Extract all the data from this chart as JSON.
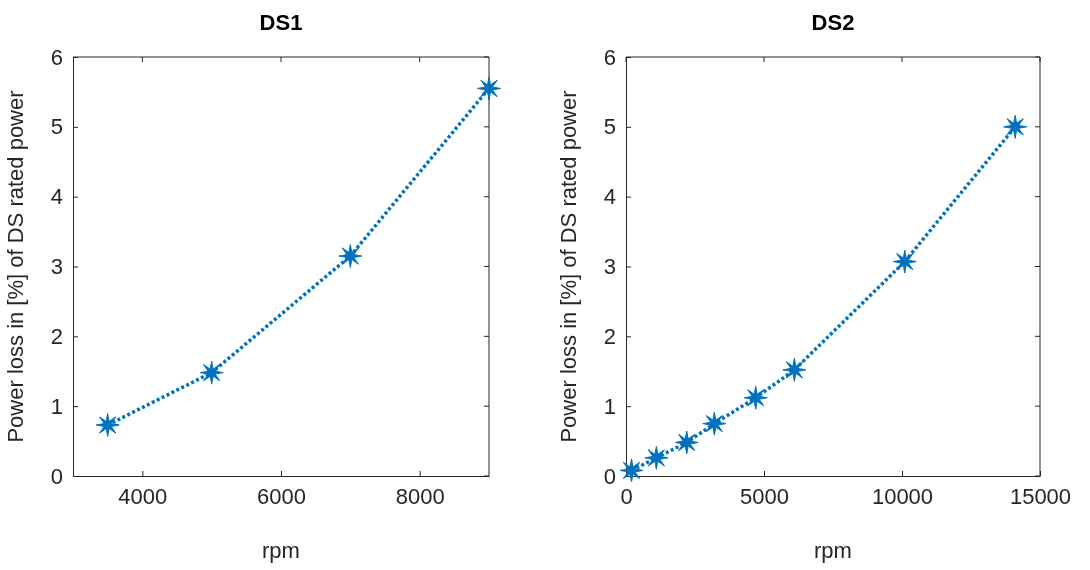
{
  "chart_data": [
    {
      "type": "line",
      "title": "DS1",
      "xlabel": "rpm",
      "ylabel": "Power loss in [%] of DS rated power",
      "x": [
        3500,
        5000,
        7000,
        9000
      ],
      "series": [
        {
          "color": "#0072bd",
          "values": [
            0.73,
            1.48,
            3.15,
            5.55
          ]
        }
      ],
      "xlim": [
        3000,
        9000
      ],
      "xticks": [
        4000,
        6000,
        8000
      ],
      "ylim": [
        0,
        6
      ],
      "yticks": [
        0,
        1,
        2,
        3,
        4,
        5,
        6
      ],
      "grid": false,
      "marker": "star",
      "line_style": "dotted"
    },
    {
      "type": "line",
      "title": "DS2",
      "xlabel": "rpm",
      "ylabel": "Power loss in [%] of DS rated power",
      "x": [
        200,
        1100,
        2200,
        3200,
        4700,
        6100,
        10100,
        14100
      ],
      "series": [
        {
          "color": "#0072bd",
          "values": [
            0.08,
            0.26,
            0.48,
            0.75,
            1.12,
            1.52,
            3.07,
            5
          ]
        }
      ],
      "xlim": [
        0,
        15000
      ],
      "xticks": [
        0,
        5000,
        10000,
        15000
      ],
      "ylim": [
        0,
        6
      ],
      "yticks": [
        0,
        1,
        2,
        3,
        4,
        5,
        6
      ],
      "grid": false,
      "marker": "star",
      "line_style": "dotted"
    }
  ]
}
